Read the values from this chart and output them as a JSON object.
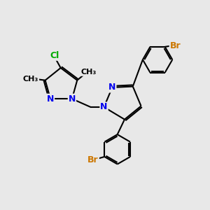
{
  "background_color": "#e8e8e8",
  "bond_color": "#000000",
  "bond_width": 1.5,
  "atom_colors": {
    "N": "#0000ee",
    "Cl": "#00aa00",
    "Br": "#cc7700",
    "C": "#000000"
  },
  "font_size_atom": 9,
  "font_size_methyl": 8,
  "xlim": [
    0,
    10
  ],
  "ylim": [
    0,
    10
  ]
}
